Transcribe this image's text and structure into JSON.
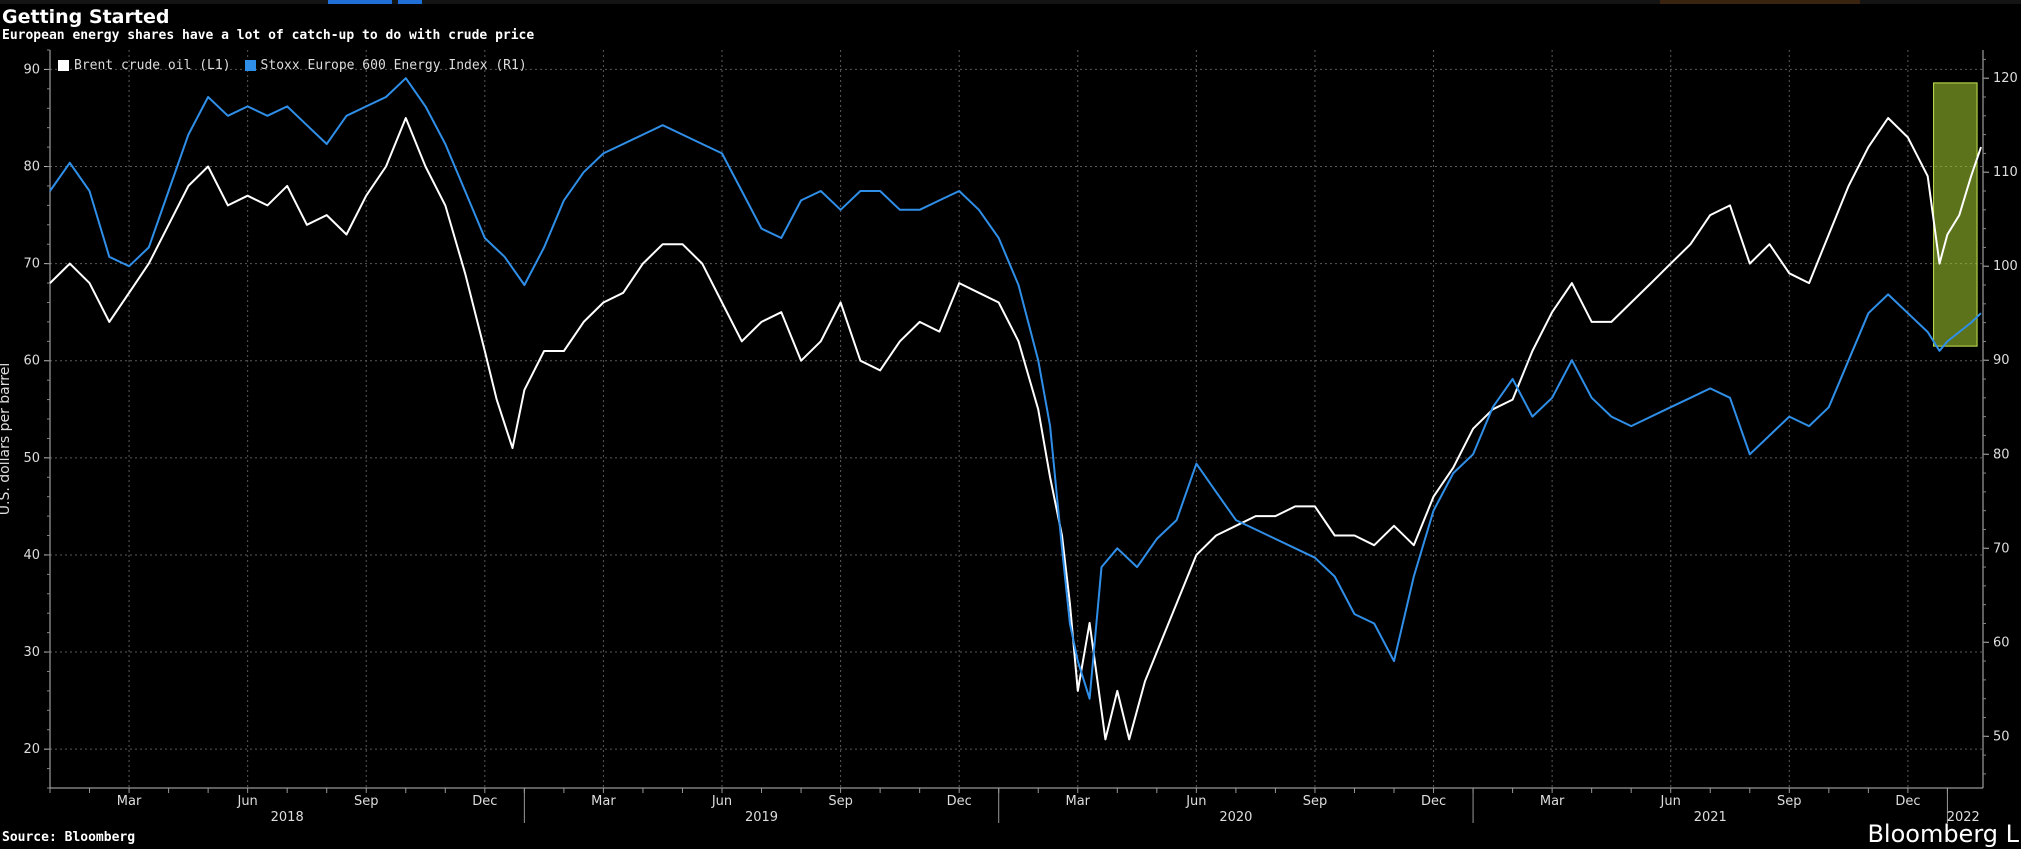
{
  "header": {
    "title": "Getting Started",
    "subtitle": "European energy shares have a lot of catch-up to do with crude price"
  },
  "footer": {
    "source": "Source: Bloomberg",
    "brand": "Bloomberg L"
  },
  "chart_data": {
    "type": "line",
    "title": "Getting Started",
    "subtitle": "European energy shares have a lot of catch-up to do with crude price",
    "ylabel_left": "U.S. dollars per barrel",
    "ylim_left": [
      16,
      92
    ],
    "ylim_right": [
      44.5,
      123
    ],
    "yticks_left": [
      20,
      30,
      40,
      50,
      60,
      70,
      80,
      90
    ],
    "yticks_right": [
      50,
      60,
      70,
      80,
      90,
      100,
      110,
      120
    ],
    "x_month_labels": [
      "Mar",
      "Jun",
      "Sep",
      "Dec",
      "Mar",
      "Jun",
      "Sep",
      "Dec",
      "Mar",
      "Jun",
      "Sep",
      "Dec",
      "Mar",
      "Jun",
      "Sep",
      "Dec"
    ],
    "x_month_positions": [
      2.0,
      5.0,
      8.0,
      11.0,
      14.0,
      17.0,
      20.0,
      23.0,
      26.0,
      29.0,
      32.0,
      35.0,
      38.0,
      41.0,
      44.0,
      47.0
    ],
    "x_year_labels": [
      "2018",
      "2019",
      "2020",
      "2021",
      "2022"
    ],
    "x_year_centers": [
      6.0,
      18.0,
      30.0,
      42.0,
      48.4
    ],
    "x_year_dividers": [
      12.0,
      24.0,
      36.0,
      48.0
    ],
    "xlim": [
      0,
      48.9
    ],
    "grid": true,
    "legend_position": "top-left",
    "highlight": {
      "x_start": 47.65,
      "x_end": 48.75,
      "y_right_start": 91.5,
      "y_right_end": 119.5,
      "color": "#a8d032"
    },
    "series": [
      {
        "name": "Brent crude oil (L1)",
        "axis": "left",
        "color": "#ffffff",
        "points": [
          [
            0,
            68
          ],
          [
            0.5,
            70
          ],
          [
            1,
            68
          ],
          [
            1.5,
            64
          ],
          [
            2,
            67
          ],
          [
            2.5,
            70
          ],
          [
            3,
            74
          ],
          [
            3.5,
            78
          ],
          [
            4,
            80
          ],
          [
            4.5,
            76
          ],
          [
            5,
            77
          ],
          [
            5.5,
            76
          ],
          [
            6,
            78
          ],
          [
            6.5,
            74
          ],
          [
            7,
            75
          ],
          [
            7.5,
            73
          ],
          [
            8,
            77
          ],
          [
            8.5,
            80
          ],
          [
            9,
            85
          ],
          [
            9.5,
            80
          ],
          [
            10,
            76
          ],
          [
            10.5,
            69
          ],
          [
            11,
            61
          ],
          [
            11.3,
            56
          ],
          [
            11.7,
            51
          ],
          [
            12,
            57
          ],
          [
            12.5,
            61
          ],
          [
            13,
            61
          ],
          [
            13.5,
            64
          ],
          [
            14,
            66
          ],
          [
            14.5,
            67
          ],
          [
            15,
            70
          ],
          [
            15.5,
            72
          ],
          [
            16,
            72
          ],
          [
            16.5,
            70
          ],
          [
            17,
            66
          ],
          [
            17.5,
            62
          ],
          [
            18,
            64
          ],
          [
            18.5,
            65
          ],
          [
            19,
            60
          ],
          [
            19.5,
            62
          ],
          [
            20,
            66
          ],
          [
            20.5,
            60
          ],
          [
            21,
            59
          ],
          [
            21.5,
            62
          ],
          [
            22,
            64
          ],
          [
            22.5,
            63
          ],
          [
            23,
            68
          ],
          [
            23.5,
            67
          ],
          [
            24,
            66
          ],
          [
            24.5,
            62
          ],
          [
            25,
            55
          ],
          [
            25.3,
            48
          ],
          [
            25.6,
            42
          ],
          [
            25.8,
            35
          ],
          [
            26,
            26
          ],
          [
            26.3,
            33
          ],
          [
            26.7,
            21
          ],
          [
            27,
            26
          ],
          [
            27.3,
            21
          ],
          [
            27.7,
            27
          ],
          [
            28,
            30
          ],
          [
            28.5,
            35
          ],
          [
            29,
            40
          ],
          [
            29.5,
            42
          ],
          [
            30,
            43
          ],
          [
            30.5,
            44
          ],
          [
            31,
            44
          ],
          [
            31.5,
            45
          ],
          [
            32,
            45
          ],
          [
            32.5,
            42
          ],
          [
            33,
            42
          ],
          [
            33.5,
            41
          ],
          [
            34,
            43
          ],
          [
            34.5,
            41
          ],
          [
            35,
            46
          ],
          [
            35.5,
            49
          ],
          [
            36,
            53
          ],
          [
            36.5,
            55
          ],
          [
            37,
            56
          ],
          [
            37.5,
            61
          ],
          [
            38,
            65
          ],
          [
            38.5,
            68
          ],
          [
            39,
            64
          ],
          [
            39.5,
            64
          ],
          [
            40,
            66
          ],
          [
            40.5,
            68
          ],
          [
            41,
            70
          ],
          [
            41.5,
            72
          ],
          [
            42,
            75
          ],
          [
            42.5,
            76
          ],
          [
            43,
            70
          ],
          [
            43.5,
            72
          ],
          [
            44,
            69
          ],
          [
            44.5,
            68
          ],
          [
            45,
            73
          ],
          [
            45.5,
            78
          ],
          [
            46,
            82
          ],
          [
            46.5,
            85
          ],
          [
            47,
            83
          ],
          [
            47.5,
            79
          ],
          [
            47.8,
            70
          ],
          [
            48,
            73
          ],
          [
            48.3,
            75
          ],
          [
            48.6,
            79
          ],
          [
            48.85,
            82
          ]
        ]
      },
      {
        "name": "Stoxx Europe 600 Energy Index (R1)",
        "axis": "right",
        "color": "#2f8fe8",
        "points": [
          [
            0,
            108
          ],
          [
            0.5,
            111
          ],
          [
            1,
            108
          ],
          [
            1.5,
            101
          ],
          [
            2,
            100
          ],
          [
            2.5,
            102
          ],
          [
            3,
            108
          ],
          [
            3.5,
            114
          ],
          [
            4,
            118
          ],
          [
            4.5,
            116
          ],
          [
            5,
            117
          ],
          [
            5.5,
            116
          ],
          [
            6,
            117
          ],
          [
            6.5,
            115
          ],
          [
            7,
            113
          ],
          [
            7.5,
            116
          ],
          [
            8,
            117
          ],
          [
            8.5,
            118
          ],
          [
            9,
            120
          ],
          [
            9.5,
            117
          ],
          [
            10,
            113
          ],
          [
            10.5,
            108
          ],
          [
            11,
            103
          ],
          [
            11.5,
            101
          ],
          [
            12,
            98
          ],
          [
            12.5,
            102
          ],
          [
            13,
            107
          ],
          [
            13.5,
            110
          ],
          [
            14,
            112
          ],
          [
            14.5,
            113
          ],
          [
            15,
            114
          ],
          [
            15.5,
            115
          ],
          [
            16,
            114
          ],
          [
            16.5,
            113
          ],
          [
            17,
            112
          ],
          [
            17.5,
            108
          ],
          [
            18,
            104
          ],
          [
            18.5,
            103
          ],
          [
            19,
            107
          ],
          [
            19.5,
            108
          ],
          [
            20,
            106
          ],
          [
            20.5,
            108
          ],
          [
            21,
            108
          ],
          [
            21.5,
            106
          ],
          [
            22,
            106
          ],
          [
            22.5,
            107
          ],
          [
            23,
            108
          ],
          [
            23.5,
            106
          ],
          [
            24,
            103
          ],
          [
            24.5,
            98
          ],
          [
            25,
            90
          ],
          [
            25.3,
            83
          ],
          [
            25.6,
            70
          ],
          [
            25.8,
            62
          ],
          [
            26,
            58
          ],
          [
            26.3,
            54
          ],
          [
            26.6,
            68
          ],
          [
            27,
            70
          ],
          [
            27.5,
            68
          ],
          [
            28,
            71
          ],
          [
            28.5,
            73
          ],
          [
            29,
            79
          ],
          [
            29.5,
            76
          ],
          [
            30,
            73
          ],
          [
            30.5,
            72
          ],
          [
            31,
            71
          ],
          [
            31.5,
            70
          ],
          [
            32,
            69
          ],
          [
            32.5,
            67
          ],
          [
            33,
            63
          ],
          [
            33.5,
            62
          ],
          [
            34,
            58
          ],
          [
            34.5,
            67
          ],
          [
            35,
            74
          ],
          [
            35.5,
            78
          ],
          [
            36,
            80
          ],
          [
            36.5,
            85
          ],
          [
            37,
            88
          ],
          [
            37.5,
            84
          ],
          [
            38,
            86
          ],
          [
            38.5,
            90
          ],
          [
            39,
            86
          ],
          [
            39.5,
            84
          ],
          [
            40,
            83
          ],
          [
            40.5,
            84
          ],
          [
            41,
            85
          ],
          [
            41.5,
            86
          ],
          [
            42,
            87
          ],
          [
            42.5,
            86
          ],
          [
            43,
            80
          ],
          [
            43.5,
            82
          ],
          [
            44,
            84
          ],
          [
            44.5,
            83
          ],
          [
            45,
            85
          ],
          [
            45.5,
            90
          ],
          [
            46,
            95
          ],
          [
            46.5,
            97
          ],
          [
            47,
            95
          ],
          [
            47.5,
            93
          ],
          [
            47.8,
            91
          ],
          [
            48,
            92
          ],
          [
            48.3,
            93
          ],
          [
            48.6,
            94
          ],
          [
            48.85,
            95
          ]
        ]
      }
    ]
  }
}
